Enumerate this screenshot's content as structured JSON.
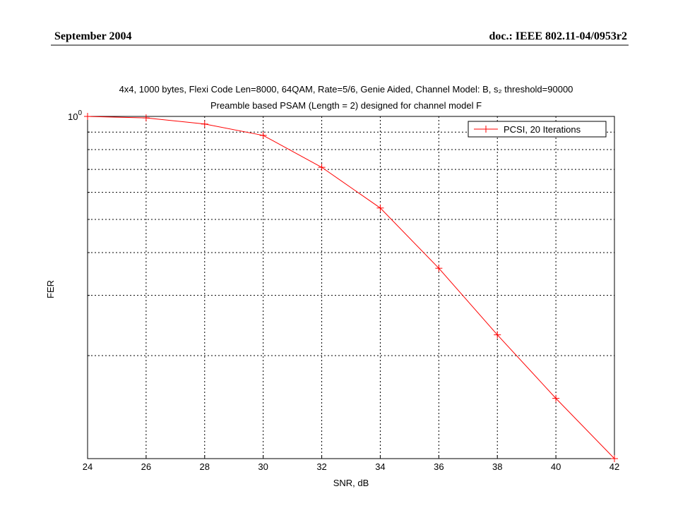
{
  "header": {
    "left": "September 2004",
    "right": "doc.: IEEE 802.11-04/0953r2"
  },
  "chart_data": {
    "type": "line",
    "title": "4x4, 1000 bytes, Flexi Code Len=8000, 64QAM, Rate=5/6, Genie Aided, Channel Model: B, s₂ threshold=90000",
    "subtitle": "Preamble based PSAM (Length = 2) designed for channel model F",
    "x_label": "SNR, dB",
    "y_label": "FER",
    "x": [
      24,
      26,
      28,
      30,
      32,
      34,
      36,
      38,
      40,
      42
    ],
    "series": [
      {
        "name": "PCSI, 20 Iterations",
        "color": "#ff0000",
        "values": [
          1.0,
          0.99,
          0.95,
          0.88,
          0.71,
          0.54,
          0.36,
          0.23,
          0.15,
          0.1
        ]
      }
    ],
    "xlim": [
      24,
      42
    ],
    "xticks": [
      24,
      26,
      28,
      30,
      32,
      34,
      36,
      38,
      40,
      42
    ],
    "ylim": [
      0.1,
      1
    ],
    "y_log": true,
    "yticks": [
      {
        "value": 1,
        "label": "10^0"
      }
    ],
    "y_minor_ticks": [
      0.9,
      0.8,
      0.7,
      0.6,
      0.5,
      0.4,
      0.3,
      0.2
    ],
    "grid": true,
    "legend": "upper right"
  }
}
